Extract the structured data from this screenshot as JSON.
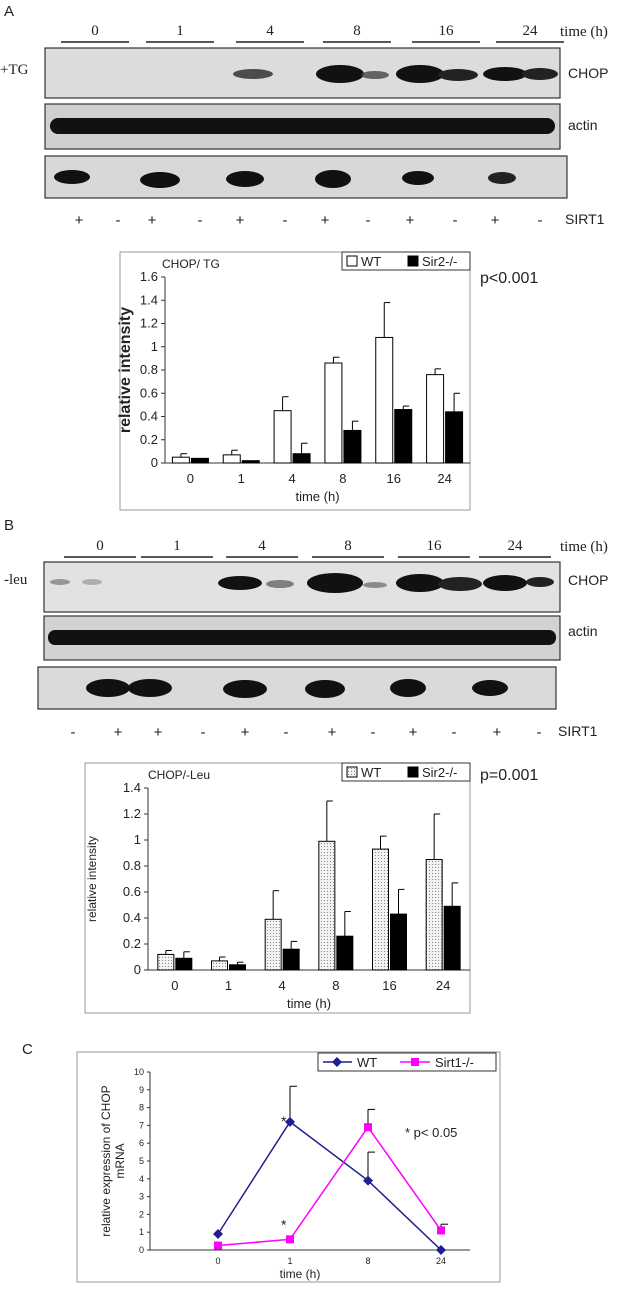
{
  "panel_a": {
    "letter": "A",
    "time_header": "time (h)",
    "time_labels": [
      "0",
      "1",
      "4",
      "8",
      "16",
      "24"
    ],
    "treatment": "+TG",
    "blots": [
      "CHOP",
      "actin"
    ],
    "sirt1_label": "SIRT1",
    "sirt1_signs": [
      "+",
      "-",
      "+",
      "-",
      "+",
      "-",
      "+",
      "-",
      "+",
      "-",
      "+",
      "-"
    ]
  },
  "panel_b": {
    "letter": "B",
    "time_header": "time (h)",
    "time_labels": [
      "0",
      "1",
      "4",
      "8",
      "16",
      "24"
    ],
    "treatment": "-leu",
    "blots": [
      "CHOP",
      "actin"
    ],
    "sirt1_label": "SIRT1",
    "sirt1_signs": [
      "-",
      "+",
      "+",
      "-",
      "+",
      "-",
      "+",
      "-",
      "+",
      "-",
      "+",
      "-"
    ]
  },
  "panel_c": {
    "letter": "C"
  },
  "colors": {
    "wt_line": "#1f1f8f",
    "ko_line": "#ff00ff",
    "text": "#222222"
  },
  "chart_data": [
    {
      "type": "bar",
      "title": "CHOP/ TG",
      "annotation": "p<0.001",
      "xlabel": "time (h)",
      "ylabel": "relative intensity",
      "categories": [
        "0",
        "1",
        "4",
        "8",
        "16",
        "24"
      ],
      "ylim": [
        0,
        1.6
      ],
      "yticks": [
        "0",
        "0.2",
        "0.4",
        "0.6",
        "0.8",
        "1",
        "1.2",
        "1.4",
        "1.6"
      ],
      "legend_position": "top-right",
      "series": [
        {
          "name": "WT",
          "values": [
            0.05,
            0.07,
            0.45,
            0.86,
            1.08,
            0.76
          ],
          "errors": [
            0.03,
            0.04,
            0.12,
            0.05,
            0.3,
            0.05
          ]
        },
        {
          "name": "Sir2-/-",
          "values": [
            0.04,
            0.02,
            0.08,
            0.28,
            0.46,
            0.44
          ],
          "errors": [
            0.0,
            0.0,
            0.09,
            0.08,
            0.03,
            0.16
          ]
        }
      ]
    },
    {
      "type": "bar",
      "title": "CHOP/-Leu",
      "annotation": "p=0.001",
      "xlabel": "time (h)",
      "ylabel": "relative intensity",
      "categories": [
        "0",
        "1",
        "4",
        "8",
        "16",
        "24"
      ],
      "ylim": [
        0,
        1.4
      ],
      "yticks": [
        "0",
        "0.2",
        "0.4",
        "0.6",
        "0.8",
        "1",
        "1.2",
        "1.4"
      ],
      "legend_position": "top-right",
      "series": [
        {
          "name": "WT",
          "values": [
            0.12,
            0.07,
            0.39,
            0.99,
            0.93,
            0.85
          ],
          "errors": [
            0.03,
            0.03,
            0.22,
            0.31,
            0.1,
            0.35
          ]
        },
        {
          "name": "Sir2-/-",
          "values": [
            0.09,
            0.04,
            0.16,
            0.26,
            0.43,
            0.49
          ],
          "errors": [
            0.05,
            0.02,
            0.06,
            0.19,
            0.19,
            0.18
          ]
        }
      ]
    },
    {
      "type": "line",
      "annotation": "* p< 0.05",
      "xlabel": "time (h)",
      "ylabel": "relative expression of CHOP mRNA",
      "categories": [
        "0",
        "1",
        "8",
        "24"
      ],
      "ylim": [
        0,
        10
      ],
      "yticks": [
        "0",
        "1",
        "2",
        "3",
        "4",
        "5",
        "6",
        "7",
        "8",
        "9",
        "10"
      ],
      "legend_position": "top",
      "series": [
        {
          "name": "WT",
          "values": [
            0.9,
            7.2,
            3.9,
            0.0
          ],
          "errors": [
            0,
            2.0,
            1.6,
            0
          ]
        },
        {
          "name": "Sirt1-/-",
          "values": [
            0.25,
            0.6,
            6.9,
            1.1
          ],
          "errors": [
            0,
            0,
            1.0,
            0.35
          ]
        }
      ],
      "asterisks": [
        "*",
        "*"
      ]
    }
  ]
}
